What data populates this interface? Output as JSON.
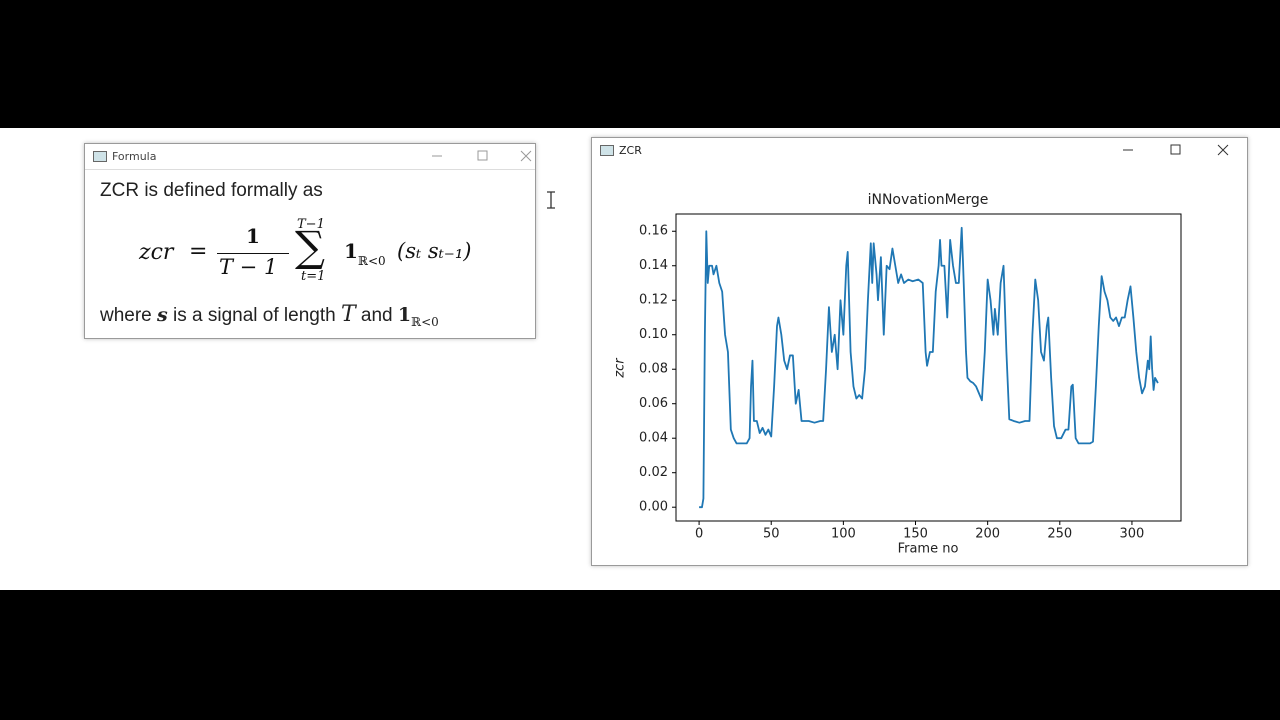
{
  "formula_window": {
    "title": "Formula",
    "intro": "ZCR is defined formally as",
    "lhs": "zcr",
    "equals": "=",
    "numerator": "1",
    "denominator": "T − 1",
    "sum_symbol": "∑",
    "sum_upper": "T−1",
    "sum_lower": "t=1",
    "indicator": "1",
    "indicator_sub": "ℝ<0",
    "argument": "(sₜ sₜ₋₁)",
    "footer_parts": [
      "where ",
      "s",
      " is a signal of length ",
      "T",
      " and ",
      "1",
      "ℝ<0"
    ]
  },
  "zcr_window": {
    "title": "ZCR",
    "chart_data": {
      "type": "line",
      "title": "iNNovationMerge",
      "x_label": "Frame no",
      "y_label": "zcr",
      "color": "#1f77b4",
      "xlim": [
        -16,
        334
      ],
      "ylim": [
        -0.008,
        0.17
      ],
      "xticks": [
        0,
        50,
        100,
        150,
        200,
        250,
        300
      ],
      "yticks": [
        {
          "value": 0,
          "label": "0.00"
        },
        {
          "value": 0.02,
          "label": "0.02"
        },
        {
          "value": 0.04,
          "label": "0.04"
        },
        {
          "value": 0.06,
          "label": "0.06"
        },
        {
          "value": 0.08,
          "label": "0.08"
        },
        {
          "value": 0.1,
          "label": "0.10"
        },
        {
          "value": 0.12,
          "label": "0.12"
        },
        {
          "value": 0.14,
          "label": "0.14"
        },
        {
          "value": 0.16,
          "label": "0.16"
        }
      ],
      "x": [
        0,
        2,
        3,
        4,
        5,
        6,
        7,
        9,
        10,
        12,
        14,
        16,
        18,
        20,
        22,
        24,
        26,
        30,
        33,
        35,
        36,
        37,
        38,
        40,
        42,
        44,
        46,
        48,
        50,
        52,
        54,
        55,
        57,
        59,
        61,
        63,
        65,
        67,
        69,
        71,
        76,
        80,
        84,
        86,
        88,
        90,
        92,
        94,
        96,
        98,
        100,
        102,
        103,
        105,
        107,
        109,
        111,
        113,
        115,
        117,
        119,
        120,
        121,
        123,
        124,
        126,
        128,
        130,
        132,
        134,
        136,
        138,
        140,
        142,
        145,
        148,
        152,
        155,
        157,
        158,
        160,
        162,
        164,
        166,
        167,
        168,
        170,
        172,
        174,
        176,
        178,
        180,
        182,
        183,
        185,
        186,
        188,
        190,
        192,
        194,
        196,
        198,
        200,
        202,
        204,
        205,
        207,
        209,
        211,
        213,
        215,
        218,
        222,
        226,
        229,
        231,
        233,
        235,
        237,
        239,
        241,
        242,
        244,
        246,
        248,
        251,
        254,
        256,
        258,
        259,
        261,
        263,
        267,
        271,
        273,
        275,
        277,
        279,
        281,
        283,
        285,
        287,
        289,
        291,
        293,
        295,
        297,
        299,
        301,
        303,
        305,
        307,
        309,
        311,
        312,
        313,
        314,
        315,
        316,
        318
      ],
      "values": [
        0,
        0,
        0.005,
        0.1,
        0.16,
        0.13,
        0.14,
        0.14,
        0.135,
        0.14,
        0.13,
        0.125,
        0.1,
        0.09,
        0.045,
        0.04,
        0.037,
        0.037,
        0.037,
        0.04,
        0.07,
        0.085,
        0.05,
        0.05,
        0.043,
        0.046,
        0.042,
        0.045,
        0.041,
        0.07,
        0.105,
        0.11,
        0.1,
        0.085,
        0.08,
        0.088,
        0.088,
        0.06,
        0.068,
        0.05,
        0.05,
        0.049,
        0.05,
        0.05,
        0.08,
        0.116,
        0.09,
        0.1,
        0.08,
        0.12,
        0.1,
        0.14,
        0.148,
        0.09,
        0.07,
        0.063,
        0.065,
        0.063,
        0.08,
        0.12,
        0.153,
        0.13,
        0.153,
        0.135,
        0.12,
        0.145,
        0.1,
        0.14,
        0.138,
        0.15,
        0.14,
        0.13,
        0.135,
        0.13,
        0.132,
        0.131,
        0.132,
        0.13,
        0.09,
        0.082,
        0.09,
        0.09,
        0.125,
        0.14,
        0.155,
        0.14,
        0.14,
        0.11,
        0.155,
        0.14,
        0.13,
        0.13,
        0.162,
        0.14,
        0.09,
        0.075,
        0.073,
        0.072,
        0.07,
        0.066,
        0.062,
        0.09,
        0.132,
        0.12,
        0.1,
        0.115,
        0.1,
        0.13,
        0.14,
        0.09,
        0.051,
        0.05,
        0.049,
        0.05,
        0.05,
        0.1,
        0.132,
        0.12,
        0.09,
        0.085,
        0.105,
        0.11,
        0.075,
        0.047,
        0.04,
        0.04,
        0.045,
        0.045,
        0.07,
        0.071,
        0.04,
        0.037,
        0.037,
        0.037,
        0.038,
        0.07,
        0.105,
        0.134,
        0.125,
        0.12,
        0.11,
        0.108,
        0.11,
        0.105,
        0.11,
        0.11,
        0.12,
        0.128,
        0.11,
        0.09,
        0.075,
        0.066,
        0.07,
        0.085,
        0.08,
        0.099,
        0.08,
        0.068,
        0.075,
        0.072
      ]
    }
  }
}
